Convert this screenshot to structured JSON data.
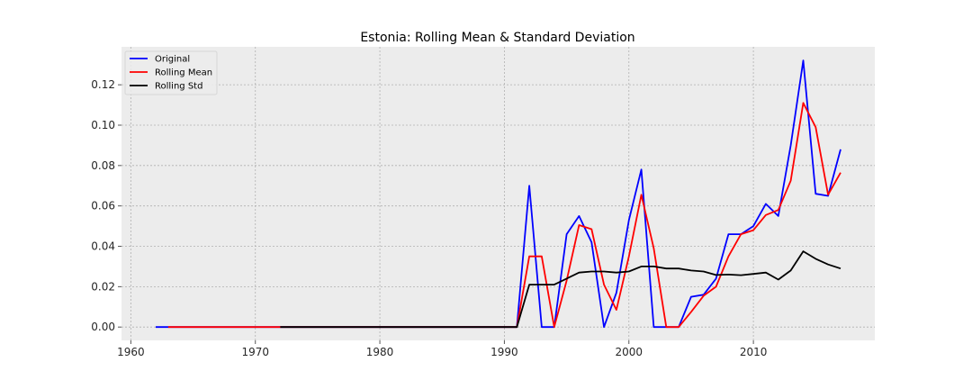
{
  "chart_data": {
    "type": "line",
    "title": "Estonia: Rolling Mean & Standard Deviation",
    "xlabel": "",
    "ylabel": "",
    "xlim": [
      1959.25,
      2019.75
    ],
    "ylim": [
      -0.0066,
      0.1388
    ],
    "xticks": [
      1960,
      1970,
      1980,
      1990,
      2000,
      2010
    ],
    "yticks": [
      0.0,
      0.02,
      0.04,
      0.06,
      0.08,
      0.1,
      0.12
    ],
    "ytick_labels": [
      "0.00",
      "0.02",
      "0.04",
      "0.06",
      "0.08",
      "0.10",
      "0.12"
    ],
    "grid": true,
    "legend_position": "upper-left",
    "series": [
      {
        "name": "Original",
        "color": "#0000ff",
        "x": [
          1962,
          1963,
          1964,
          1965,
          1966,
          1967,
          1968,
          1969,
          1970,
          1971,
          1972,
          1973,
          1974,
          1975,
          1976,
          1977,
          1978,
          1979,
          1980,
          1981,
          1982,
          1983,
          1984,
          1985,
          1986,
          1987,
          1988,
          1989,
          1990,
          1991,
          1992,
          1993,
          1994,
          1995,
          1996,
          1997,
          1998,
          1999,
          2000,
          2001,
          2002,
          2003,
          2004,
          2005,
          2006,
          2007,
          2008,
          2009,
          2010,
          2011,
          2012,
          2013,
          2014,
          2015,
          2016,
          2017
        ],
        "values": [
          0,
          0,
          0,
          0,
          0,
          0,
          0,
          0,
          0,
          0,
          0,
          0,
          0,
          0,
          0,
          0,
          0,
          0,
          0,
          0,
          0,
          0,
          0,
          0,
          0,
          0,
          0,
          0,
          0,
          0,
          0.07,
          0,
          0,
          0.046,
          0.055,
          0.042,
          0,
          0.017,
          0.053,
          0.078,
          0,
          0,
          0,
          0.015,
          0.016,
          0.024,
          0.046,
          0.046,
          0.05,
          0.061,
          0.055,
          0.09,
          0.132,
          0.066,
          0.065,
          0.088
        ]
      },
      {
        "name": "Rolling Mean",
        "color": "#ff0000",
        "x": [
          1963,
          1964,
          1965,
          1966,
          1967,
          1968,
          1969,
          1970,
          1971,
          1972,
          1973,
          1974,
          1975,
          1976,
          1977,
          1978,
          1979,
          1980,
          1981,
          1982,
          1983,
          1984,
          1985,
          1986,
          1987,
          1988,
          1989,
          1990,
          1991,
          1992,
          1993,
          1994,
          1995,
          1996,
          1997,
          1998,
          1999,
          2000,
          2001,
          2002,
          2003,
          2004,
          2005,
          2006,
          2007,
          2008,
          2009,
          2010,
          2011,
          2012,
          2013,
          2014,
          2015,
          2016,
          2017
        ],
        "values": [
          0,
          0,
          0,
          0,
          0,
          0,
          0,
          0,
          0,
          0,
          0,
          0,
          0,
          0,
          0,
          0,
          0,
          0,
          0,
          0,
          0,
          0,
          0,
          0,
          0,
          0,
          0,
          0,
          0,
          0.035,
          0.035,
          0,
          0.023,
          0.0505,
          0.0485,
          0.021,
          0.0085,
          0.035,
          0.0655,
          0.039,
          0,
          0,
          0.0075,
          0.0155,
          0.02,
          0.035,
          0.046,
          0.048,
          0.0555,
          0.058,
          0.0725,
          0.111,
          0.099,
          0.0655,
          0.0765
        ]
      },
      {
        "name": "Rolling Std",
        "color": "#000000",
        "x": [
          1972,
          1973,
          1974,
          1975,
          1976,
          1977,
          1978,
          1979,
          1980,
          1981,
          1982,
          1983,
          1984,
          1985,
          1986,
          1987,
          1988,
          1989,
          1990,
          1991,
          1992,
          1993,
          1994,
          1995,
          1996,
          1997,
          1998,
          1999,
          2000,
          2001,
          2002,
          2003,
          2004,
          2005,
          2006,
          2007,
          2008,
          2009,
          2010,
          2011,
          2012,
          2013,
          2014,
          2015,
          2016,
          2017
        ],
        "values": [
          0,
          0,
          0,
          0,
          0,
          0,
          0,
          0,
          0,
          0,
          0,
          0,
          0,
          0,
          0,
          0,
          0,
          0,
          0,
          0,
          0.021,
          0.021,
          0.021,
          0.024,
          0.027,
          0.0275,
          0.0275,
          0.027,
          0.0275,
          0.03,
          0.03,
          0.029,
          0.029,
          0.028,
          0.0275,
          0.0258,
          0.026,
          0.0257,
          0.0263,
          0.027,
          0.0235,
          0.028,
          0.0375,
          0.0338,
          0.031,
          0.029
        ]
      }
    ]
  }
}
